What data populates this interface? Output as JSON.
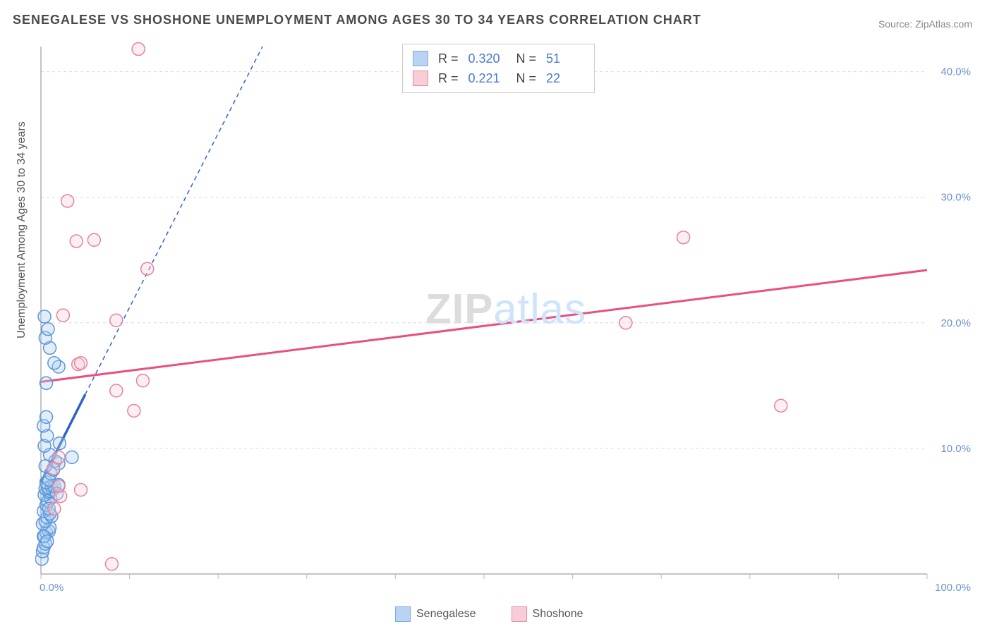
{
  "title": "SENEGALESE VS SHOSHONE UNEMPLOYMENT AMONG AGES 30 TO 34 YEARS CORRELATION CHART",
  "source_prefix": "Source: ",
  "source_name": "ZipAtlas.com",
  "y_axis_label": "Unemployment Among Ages 30 to 34 years",
  "watermark_zip": "ZIP",
  "watermark_atlas": "atlas",
  "chart": {
    "type": "scatter",
    "background_color": "#ffffff",
    "grid_color": "#dcdcdc",
    "grid_dash": "4,4",
    "axis_color": "#888888",
    "tick_color": "#bbbbbb",
    "tick_label_color": "#6a92d4",
    "tick_fontsize": 15,
    "title_fontsize": 18,
    "title_color": "#4a4a4a",
    "label_fontsize": 16,
    "label_color": "#555555",
    "xlim": [
      0,
      100
    ],
    "ylim": [
      0,
      42
    ],
    "x_ticks": [
      0,
      10,
      20,
      30,
      40,
      50,
      60,
      70,
      80,
      90,
      100
    ],
    "x_tick_labels_shown": {
      "0": "0.0%",
      "100": "100.0%"
    },
    "y_ticks": [
      10,
      20,
      30,
      40
    ],
    "y_tick_labels": {
      "10": "10.0%",
      "20": "20.0%",
      "30": "30.0%",
      "40": "40.0%"
    },
    "marker_radius": 9,
    "marker_stroke_width": 1.5,
    "marker_fill_opacity": 0.35,
    "series": [
      {
        "name": "Senegalese",
        "swatch_fill": "#b9d4f2",
        "swatch_stroke": "#7da9e0",
        "marker_fill": "#a9cdf0",
        "marker_stroke": "#5c95db",
        "trend_color": "#2f63c7",
        "trend_width": 3.5,
        "trend_dash": "none",
        "trend_from": [
          0,
          7.3
        ],
        "trend_to": [
          5,
          14.3
        ],
        "extension_dash": "6,5",
        "extension_from": [
          5,
          14.3
        ],
        "extension_to": [
          25,
          42
        ],
        "R": "0.320",
        "N": "51",
        "points": [
          [
            0.1,
            1.2
          ],
          [
            0.2,
            1.8
          ],
          [
            0.3,
            2.1
          ],
          [
            0.5,
            2.4
          ],
          [
            0.4,
            3.0
          ],
          [
            0.6,
            3.3
          ],
          [
            0.9,
            3.4
          ],
          [
            1.0,
            3.7
          ],
          [
            0.2,
            4.0
          ],
          [
            0.5,
            4.2
          ],
          [
            0.7,
            4.5
          ],
          [
            1.2,
            4.6
          ],
          [
            0.3,
            5.0
          ],
          [
            0.6,
            5.5
          ],
          [
            0.8,
            5.8
          ],
          [
            1.1,
            6.0
          ],
          [
            0.4,
            6.3
          ],
          [
            0.9,
            6.5
          ],
          [
            1.0,
            6.6
          ],
          [
            1.3,
            6.7
          ],
          [
            0.5,
            6.8
          ],
          [
            0.8,
            6.9
          ],
          [
            1.2,
            7.0
          ],
          [
            1.5,
            7.0
          ],
          [
            2.0,
            7.1
          ],
          [
            0.6,
            7.3
          ],
          [
            0.9,
            7.5
          ],
          [
            1.1,
            8.0
          ],
          [
            1.4,
            8.3
          ],
          [
            0.5,
            8.6
          ],
          [
            2.0,
            8.8
          ],
          [
            1.6,
            9.0
          ],
          [
            3.5,
            9.3
          ],
          [
            1.0,
            9.5
          ],
          [
            0.4,
            10.2
          ],
          [
            2.1,
            10.4
          ],
          [
            0.7,
            11.0
          ],
          [
            0.3,
            11.8
          ],
          [
            1.0,
            4.8
          ],
          [
            0.6,
            15.2
          ],
          [
            2.0,
            16.5
          ],
          [
            1.5,
            16.8
          ],
          [
            1.0,
            18.0
          ],
          [
            0.5,
            18.8
          ],
          [
            0.8,
            19.5
          ],
          [
            0.4,
            20.5
          ],
          [
            0.6,
            12.5
          ],
          [
            0.9,
            5.2
          ],
          [
            1.8,
            6.4
          ],
          [
            0.3,
            3.0
          ],
          [
            0.7,
            2.6
          ]
        ]
      },
      {
        "name": "Shoshone",
        "swatch_fill": "#f7cdd8",
        "swatch_stroke": "#e88ba5",
        "marker_fill": "#f7cdd8",
        "marker_stroke": "#e583a0",
        "trend_color": "#e94f80",
        "trend_width": 3,
        "trend_dash": "none",
        "trend_from": [
          0,
          15.3
        ],
        "trend_to": [
          100,
          24.2
        ],
        "R": "0.221",
        "N": "22",
        "points": [
          [
            8.0,
            0.8
          ],
          [
            1.5,
            5.2
          ],
          [
            2.2,
            6.2
          ],
          [
            4.5,
            6.7
          ],
          [
            2.0,
            7.0
          ],
          [
            1.4,
            8.4
          ],
          [
            2.0,
            9.3
          ],
          [
            10.5,
            13.0
          ],
          [
            8.5,
            14.6
          ],
          [
            11.5,
            15.4
          ],
          [
            4.2,
            16.7
          ],
          [
            4.5,
            16.8
          ],
          [
            8.5,
            20.2
          ],
          [
            2.5,
            20.6
          ],
          [
            12.0,
            24.3
          ],
          [
            4.0,
            26.5
          ],
          [
            6.0,
            26.6
          ],
          [
            3.0,
            29.7
          ],
          [
            11.0,
            41.8
          ],
          [
            66.0,
            20.0
          ],
          [
            72.5,
            26.8
          ],
          [
            83.5,
            13.4
          ]
        ]
      }
    ]
  },
  "stats_legend": {
    "r_label": "R =",
    "n_label": "N ="
  },
  "series_legend_labels": [
    "Senegalese",
    "Shoshone"
  ]
}
